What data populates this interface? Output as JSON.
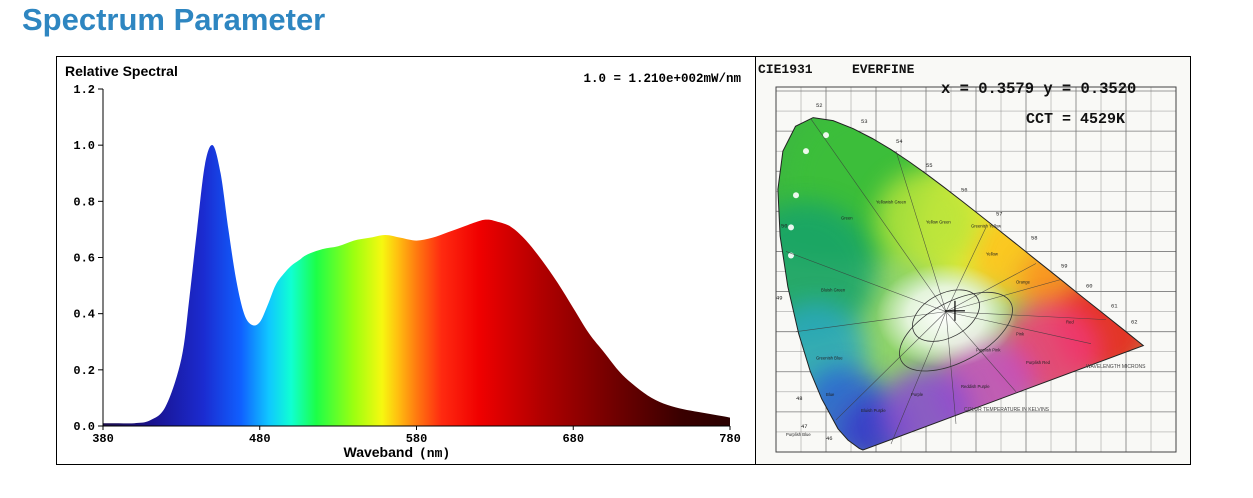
{
  "page": {
    "title": "Spectrum Parameter"
  },
  "chart_data": [
    {
      "type": "area",
      "title": "Relative Spectral",
      "annotation": "1.0 = 1.210e+002mW/nm",
      "xlabel": "Waveband",
      "xlabel_unit": "(nm)",
      "xlim": [
        380,
        780
      ],
      "ylim": [
        0,
        1.2
      ],
      "xticks": [
        "380",
        "480",
        "580",
        "680",
        "780"
      ],
      "yticks": [
        "0.0",
        "0.2",
        "0.4",
        "0.6",
        "0.8",
        "1.0",
        "1.2"
      ],
      "grid": false,
      "fill": "visible-spectrum colour gradient",
      "series": [
        {
          "x": [
            380,
            390,
            400,
            410,
            420,
            430,
            435,
            440,
            445,
            450,
            455,
            460,
            465,
            470,
            475,
            480,
            485,
            490,
            495,
            500,
            505,
            510,
            520,
            530,
            540,
            550,
            560,
            570,
            580,
            590,
            600,
            610,
            620,
            625,
            630,
            640,
            650,
            660,
            670,
            680,
            690,
            700,
            710,
            720,
            730,
            740,
            750,
            760,
            770,
            780
          ],
          "values": [
            0.01,
            0.01,
            0.01,
            0.02,
            0.07,
            0.24,
            0.45,
            0.7,
            0.93,
            1.0,
            0.9,
            0.7,
            0.52,
            0.4,
            0.36,
            0.37,
            0.43,
            0.5,
            0.54,
            0.57,
            0.59,
            0.61,
            0.63,
            0.64,
            0.66,
            0.67,
            0.68,
            0.67,
            0.66,
            0.67,
            0.69,
            0.71,
            0.73,
            0.735,
            0.73,
            0.71,
            0.66,
            0.59,
            0.51,
            0.42,
            0.33,
            0.26,
            0.19,
            0.14,
            0.1,
            0.075,
            0.06,
            0.05,
            0.04,
            0.03
          ]
        }
      ]
    },
    {
      "type": "scatter",
      "title": "CIE1931",
      "brand": "EVERFINE",
      "coordinates": "x = 0.3579 y = 0.3520",
      "cct": "CCT = 4529K",
      "xlim": [
        0,
        0.8
      ],
      "ylim": [
        0,
        0.9
      ],
      "grid": true,
      "point": {
        "x": 0.3579,
        "y": 0.352
      },
      "region_labels": [
        "Green",
        "Yellowish Green",
        "Yellow Green",
        "Greenish Yellow",
        "Yellow",
        "Orange",
        "Red",
        "Pink",
        "Purplish Pink",
        "Purplish Red",
        "Reddish Purple",
        "Purple",
        "Bluish Purple",
        "Blue",
        "Greenish Blue",
        "Bluish Green",
        "Purplish Blue"
      ],
      "locus_labels": [
        "52",
        "53",
        "54",
        "55",
        "56",
        "57",
        "58",
        "59",
        "60",
        "61",
        "62",
        "50",
        "49",
        "48",
        "47",
        "46"
      ],
      "notes": [
        "COLOR TEMPERATURE IN KELVINS",
        "WAVELENGTH MICRONS"
      ]
    }
  ]
}
